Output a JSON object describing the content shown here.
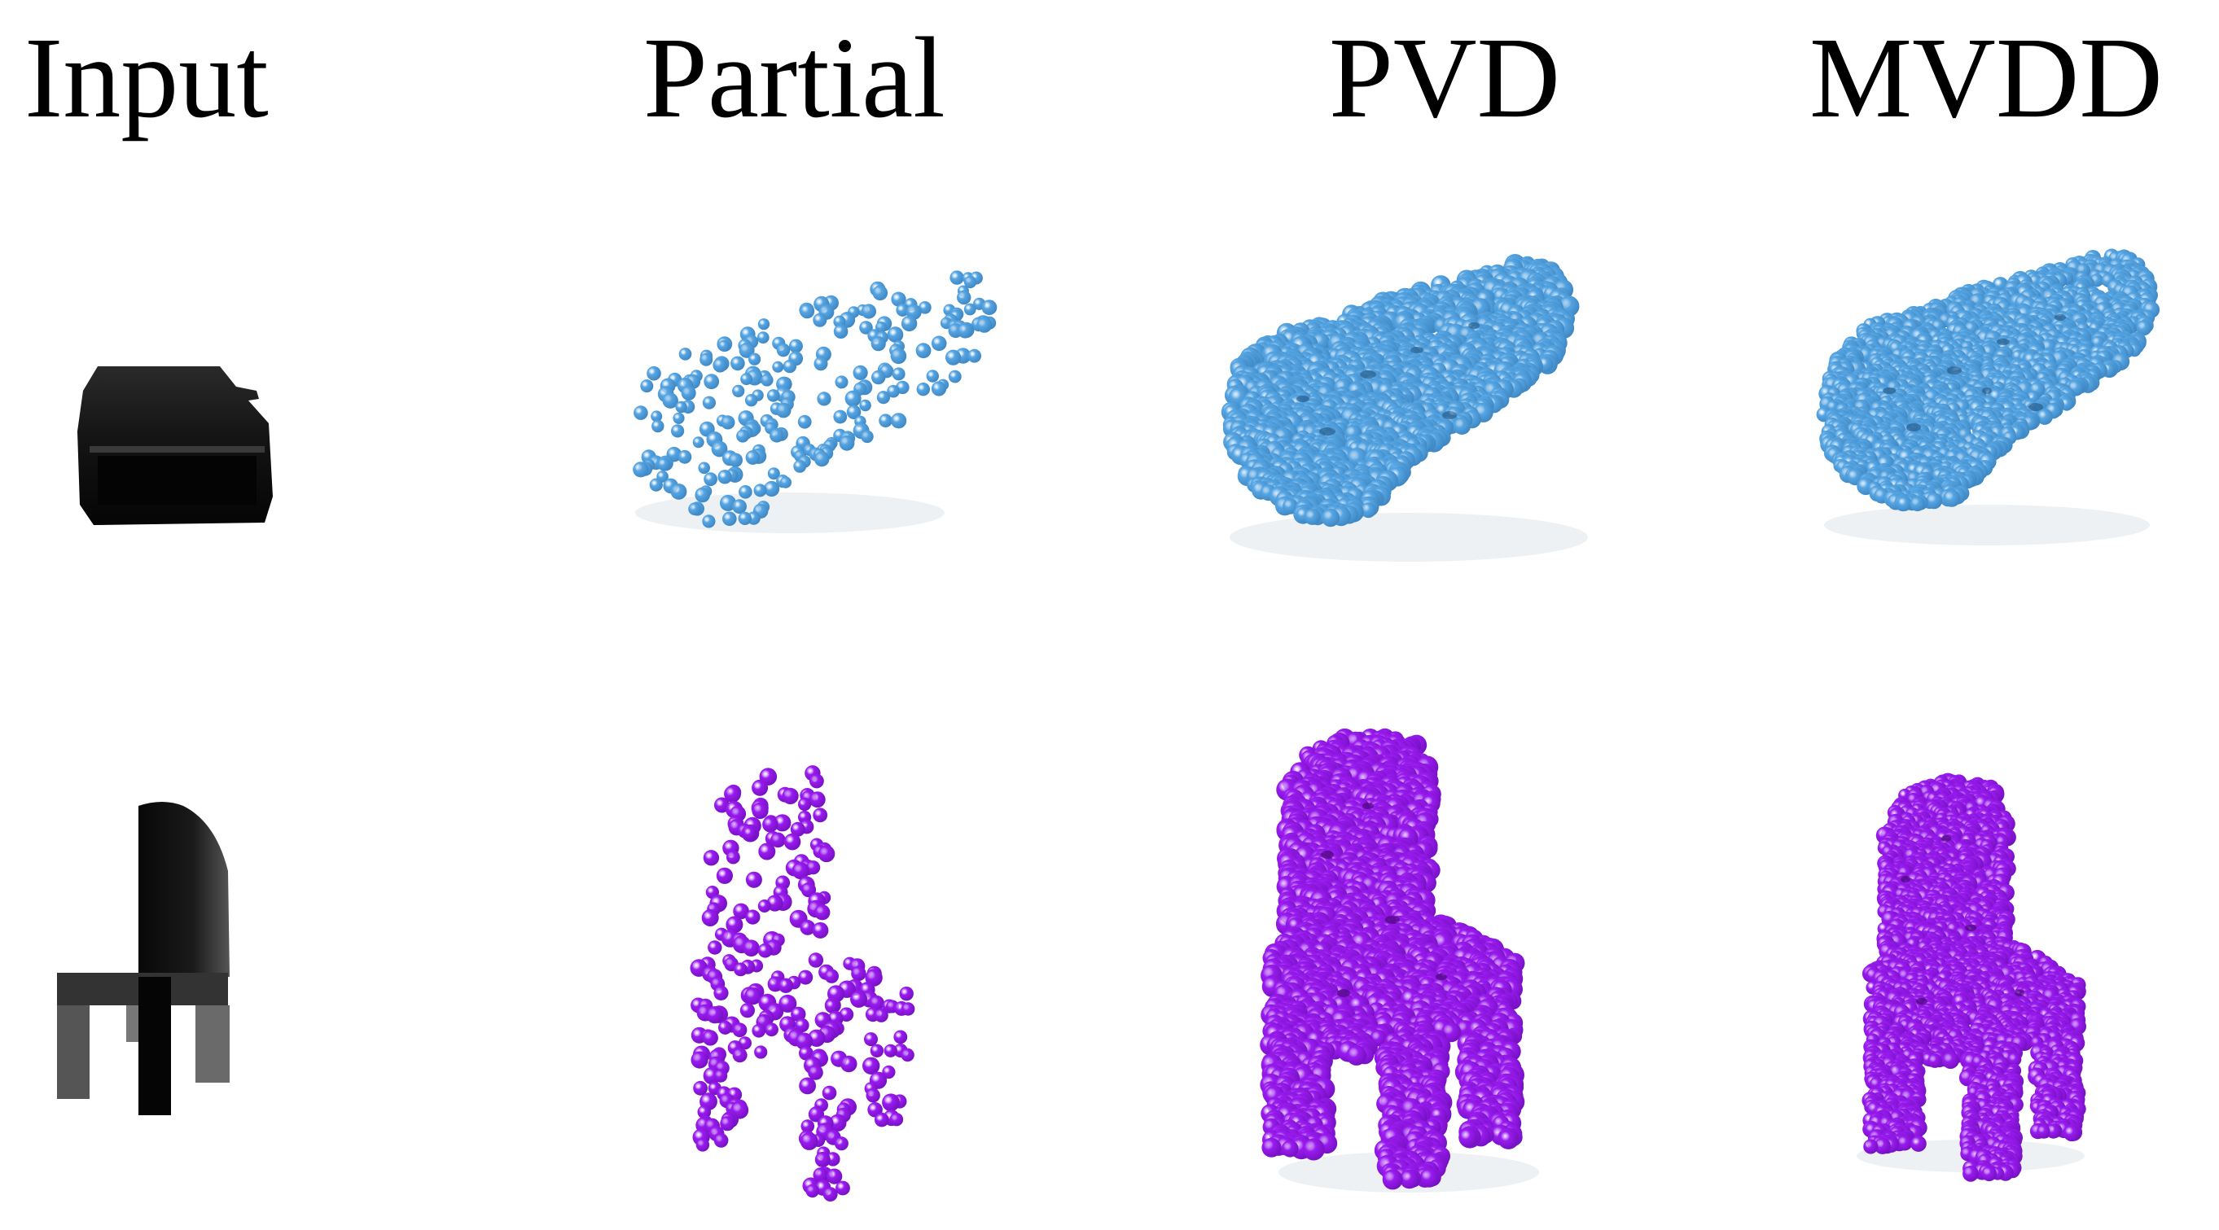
{
  "headers": {
    "input": "Input",
    "partial": "Partial",
    "pvd": "PVD",
    "mvdd": "MVDD"
  },
  "rows": [
    {
      "object": "car",
      "point_color": "#56a5e3",
      "point_shadow": "#3d86c2"
    },
    {
      "object": "chair",
      "point_color": "#9a1bf0",
      "point_shadow": "#7410c0"
    }
  ],
  "colors": {
    "background": "#ffffff",
    "text": "#000000",
    "depth_dark": "#0b0b0b"
  }
}
